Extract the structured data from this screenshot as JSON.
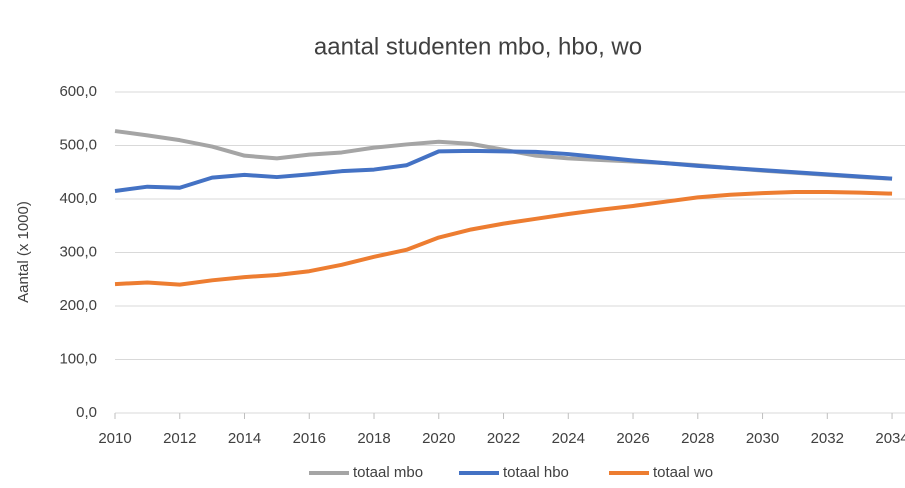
{
  "chart_data": {
    "type": "line",
    "title": "aantal studenten mbo, hbo, wo",
    "ylabel": "Aantal (x 1000)",
    "x": [
      2010,
      2011,
      2012,
      2013,
      2014,
      2015,
      2016,
      2017,
      2018,
      2019,
      2020,
      2021,
      2022,
      2023,
      2024,
      2025,
      2026,
      2027,
      2028,
      2029,
      2030,
      2031,
      2032,
      2033,
      2034
    ],
    "series": [
      {
        "name": "totaal mbo",
        "color": "#a5a5a5",
        "values": [
          527,
          519,
          510,
          498,
          481,
          476,
          483,
          487,
          496,
          502,
          507,
          503,
          492,
          481,
          476,
          473,
          470,
          467,
          463,
          458,
          453,
          449,
          445,
          441,
          438
        ]
      },
      {
        "name": "totaal hbo",
        "color": "#4472c4",
        "values": [
          415,
          423,
          421,
          440,
          445,
          441,
          446,
          452,
          455,
          463,
          489,
          490,
          489,
          488,
          484,
          478,
          472,
          467,
          462,
          458,
          454,
          450,
          446,
          442,
          438
        ]
      },
      {
        "name": "totaal wo",
        "color": "#ed7d31",
        "values": [
          241,
          244,
          240,
          248,
          254,
          258,
          265,
          277,
          292,
          305,
          328,
          343,
          354,
          363,
          372,
          380,
          387,
          395,
          403,
          408,
          411,
          413,
          413,
          412,
          410
        ]
      }
    ],
    "xlim": [
      2010,
      2034.4
    ],
    "xticks": [
      2010,
      2012,
      2014,
      2016,
      2018,
      2020,
      2022,
      2024,
      2026,
      2028,
      2030,
      2032,
      2034
    ],
    "ylim": [
      0,
      600
    ],
    "yticks": [
      {
        "value": 0,
        "label": "0,0"
      },
      {
        "value": 100,
        "label": "100,0"
      },
      {
        "value": 200,
        "label": "200,0"
      },
      {
        "value": 300,
        "label": "300,0"
      },
      {
        "value": 400,
        "label": "400,0"
      },
      {
        "value": 500,
        "label": "500,0"
      },
      {
        "value": 600,
        "label": "600,0"
      }
    ],
    "grid": true,
    "legend": "bottom"
  }
}
